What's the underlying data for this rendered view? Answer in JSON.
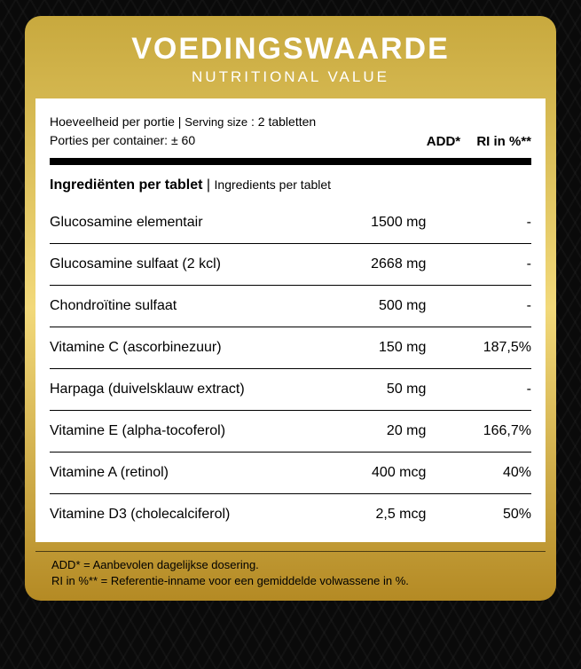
{
  "colors": {
    "gold_top": "#c8a93e",
    "gold_mid": "#f2d97a",
    "gold_bot": "#b48a24",
    "bg": "#0a0a0a",
    "panel_bg": "#ffffff",
    "text": "#000000",
    "header_text": "#ffffff"
  },
  "header": {
    "title": "VOEDINGSWAARDE",
    "subtitle": "NUTRITIONAL VALUE"
  },
  "serving": {
    "line1_label_nl": "Hoeveelheid per portie",
    "line1_label_en": "Serving size",
    "line1_value": "2 tabletten",
    "line2": "Porties per container: ± 60",
    "col_add": "ADD*",
    "col_ri": "RI in %**"
  },
  "section": {
    "title_nl": "Ingrediënten per tablet",
    "title_en": "Ingredients per tablet"
  },
  "rows": [
    {
      "name": "Glucosamine elementair",
      "add": "1500 mg",
      "ri": "-"
    },
    {
      "name": "Glucosamine sulfaat (2 kcl)",
      "add": "2668 mg",
      "ri": "-"
    },
    {
      "name": "Chondroïtine sulfaat",
      "add": "500 mg",
      "ri": "-"
    },
    {
      "name": "Vitamine C (ascorbinezuur)",
      "add": "150 mg",
      "ri": "187,5%"
    },
    {
      "name": "Harpaga (duivelsklauw extract)",
      "add": "50 mg",
      "ri": "-"
    },
    {
      "name": "Vitamine E (alpha-tocoferol)",
      "add": "20 mg",
      "ri": "166,7%"
    },
    {
      "name": "Vitamine A (retinol)",
      "add": "400 mcg",
      "ri": "40%"
    },
    {
      "name": "Vitamine D3 (cholecalciferol)",
      "add": "2,5 mcg",
      "ri": "50%"
    }
  ],
  "footnotes": {
    "line1": "ADD* = Aanbevolen dagelijkse dosering.",
    "line2": "RI in %** = Referentie-inname voor een gemiddelde volwassene in %."
  }
}
